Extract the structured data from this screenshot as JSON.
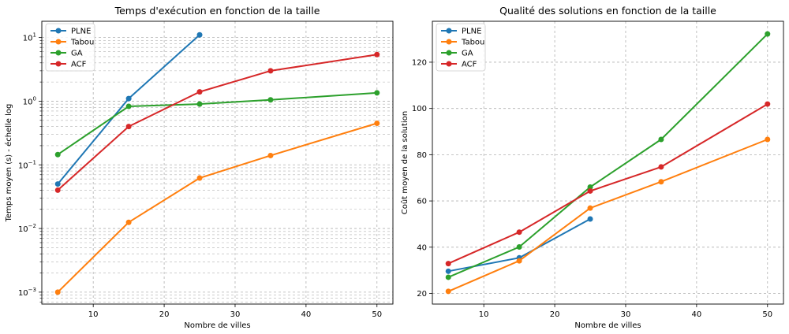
{
  "chart_data": [
    {
      "type": "line",
      "title": "Temps d'exécution en fonction de la taille",
      "xlabel": "Nombre de villes",
      "ylabel": "Temps moyen (s) - échelle log",
      "yscale": "log",
      "xlim": [
        2.75,
        52.25
      ],
      "ylim": [
        0.00065,
        18
      ],
      "xticks": [
        10,
        20,
        30,
        40,
        50
      ],
      "yticks": [
        {
          "value": 0.001,
          "base": "10",
          "exp": "−3"
        },
        {
          "value": 0.01,
          "base": "10",
          "exp": "−2"
        },
        {
          "value": 0.1,
          "base": "10",
          "exp": "−1"
        },
        {
          "value": 1,
          "base": "10",
          "exp": "0"
        },
        {
          "value": 10,
          "base": "10",
          "exp": "1"
        }
      ],
      "grid": true,
      "legend": "top-left",
      "series": [
        {
          "name": "PLNE",
          "color": "#1f77b4",
          "x": [
            5,
            15,
            25
          ],
          "y": [
            0.05,
            1.1,
            11.0
          ]
        },
        {
          "name": "Tabou",
          "color": "#ff7f0e",
          "x": [
            5,
            15,
            25,
            35,
            50
          ],
          "y": [
            0.001,
            0.0125,
            0.062,
            0.14,
            0.45
          ]
        },
        {
          "name": "GA",
          "color": "#2ca02c",
          "x": [
            5,
            15,
            25,
            35,
            50
          ],
          "y": [
            0.145,
            0.83,
            0.9,
            1.05,
            1.35
          ]
        },
        {
          "name": "ACF",
          "color": "#d62728",
          "x": [
            5,
            15,
            25,
            35,
            50
          ],
          "y": [
            0.04,
            0.4,
            1.4,
            3.0,
            5.4
          ]
        }
      ]
    },
    {
      "type": "line",
      "title": "Qualité des solutions en fonction de la taille",
      "xlabel": "Nombre de villes",
      "ylabel": "Coût moyen de la solution",
      "yscale": "linear",
      "xlim": [
        2.75,
        52.25
      ],
      "ylim": [
        15.4,
        137.7
      ],
      "xticks": [
        10,
        20,
        30,
        40,
        50
      ],
      "yticks": [
        {
          "value": 20,
          "label": "20"
        },
        {
          "value": 40,
          "label": "40"
        },
        {
          "value": 60,
          "label": "60"
        },
        {
          "value": 80,
          "label": "80"
        },
        {
          "value": 100,
          "label": "100"
        },
        {
          "value": 120,
          "label": "120"
        }
      ],
      "grid": true,
      "legend": "top-left",
      "series": [
        {
          "name": "PLNE",
          "color": "#1f77b4",
          "x": [
            5,
            15,
            25
          ],
          "y": [
            29.6,
            35.4,
            52.2
          ]
        },
        {
          "name": "Tabou",
          "color": "#ff7f0e",
          "x": [
            5,
            15,
            25,
            35,
            50
          ],
          "y": [
            20.9,
            34.1,
            56.9,
            68.3,
            86.6
          ]
        },
        {
          "name": "GA",
          "color": "#2ca02c",
          "x": [
            5,
            15,
            25,
            35,
            50
          ],
          "y": [
            27.0,
            40.1,
            66.0,
            86.6,
            132.2
          ]
        },
        {
          "name": "ACF",
          "color": "#d62728",
          "x": [
            5,
            15,
            25,
            35,
            50
          ],
          "y": [
            32.9,
            46.5,
            64.3,
            74.7,
            101.9
          ]
        }
      ]
    }
  ]
}
